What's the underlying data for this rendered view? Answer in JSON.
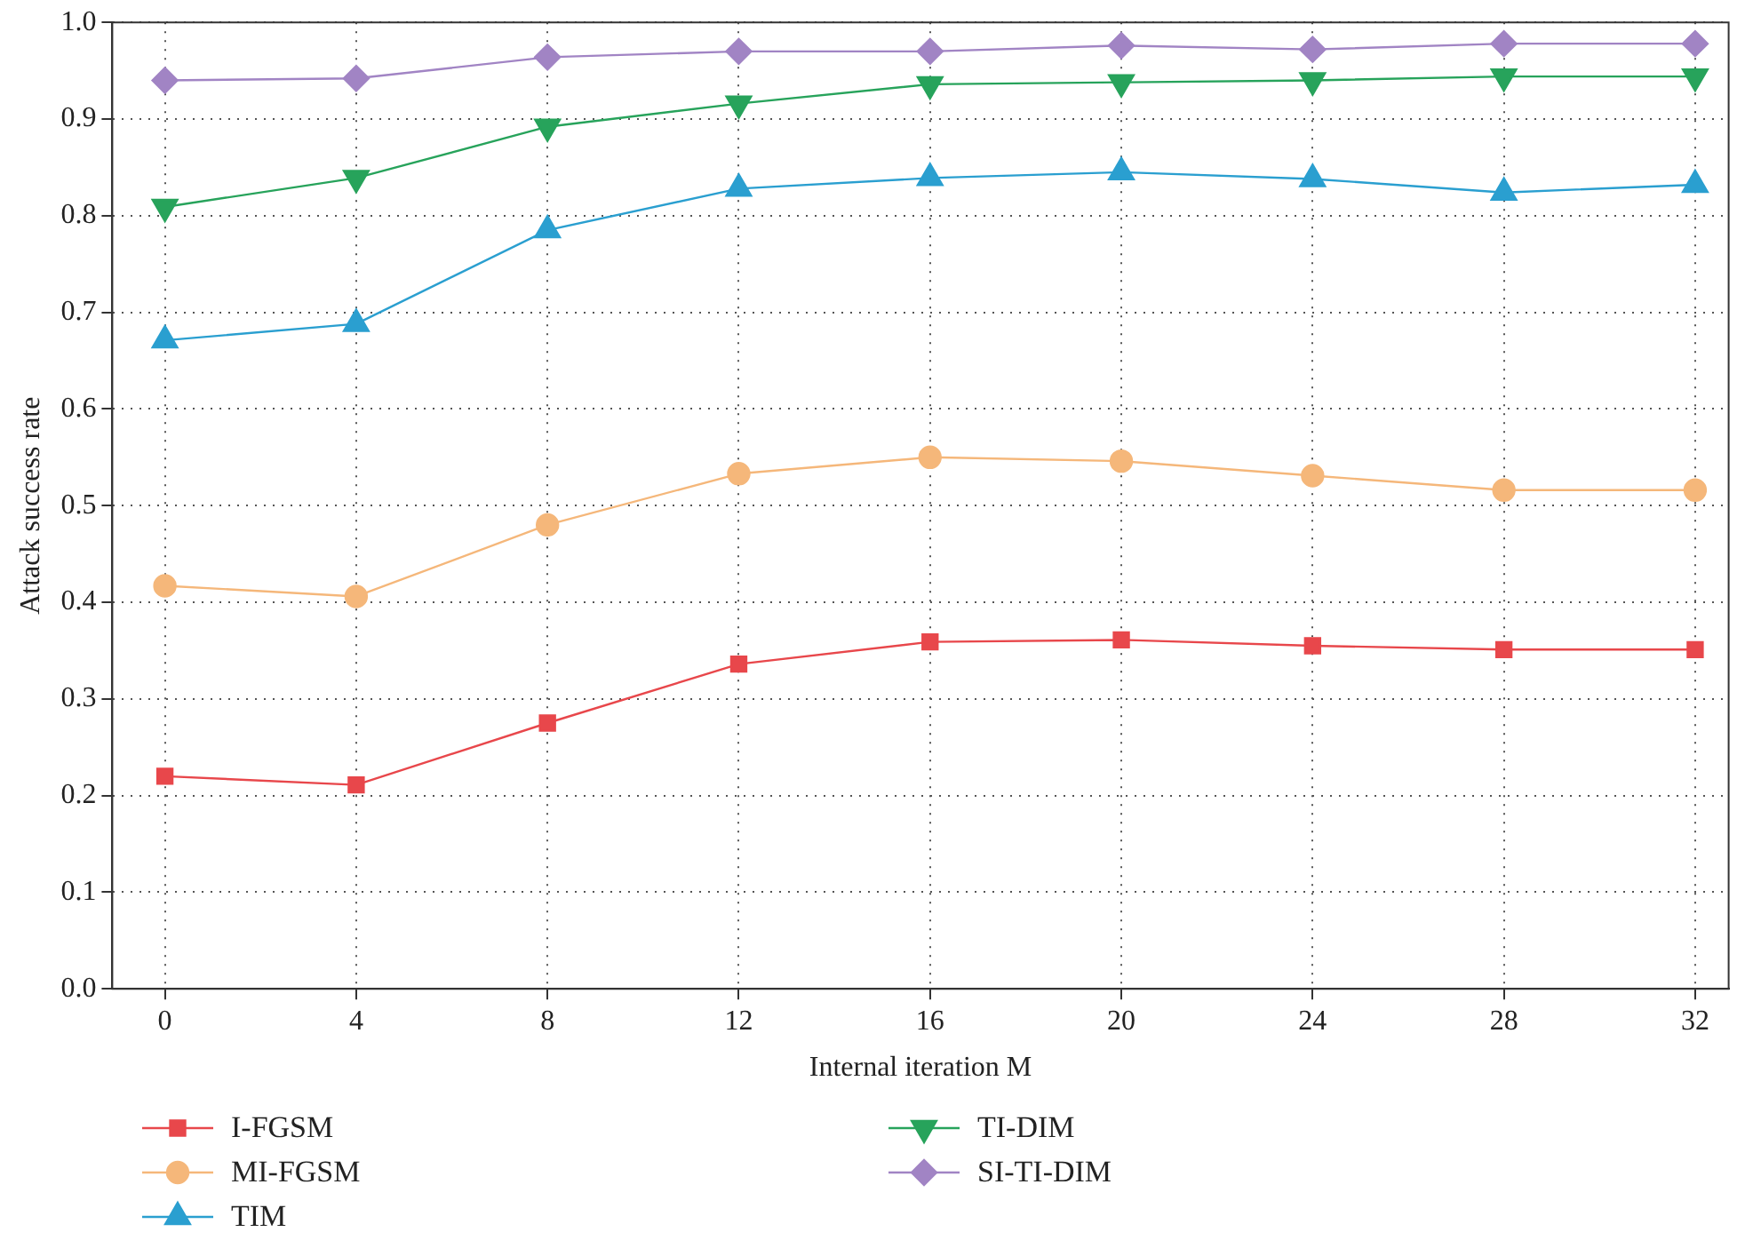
{
  "chart_data": {
    "type": "line",
    "xlabel": "Internal iteration M",
    "ylabel": "Attack success rate",
    "x": [
      0,
      4,
      8,
      12,
      16,
      20,
      24,
      28,
      32
    ],
    "xlim": [
      -1.1,
      32.7
    ],
    "xticks": [
      0,
      4,
      8,
      12,
      16,
      20,
      24,
      28,
      32
    ],
    "ylim": [
      0,
      1
    ],
    "yticks": [
      {
        "value": 0,
        "label": "0.0"
      },
      0.1,
      0.2,
      0.3,
      0.4,
      0.5,
      0.6,
      0.7,
      0.8,
      0.9,
      {
        "value": 1,
        "label": "1.0"
      }
    ],
    "grid": true,
    "legend": "bottom",
    "line_style": "solid",
    "series": [
      {
        "name": "I-FGSM",
        "color": "#e8474b",
        "marker": "square",
        "values": [
          0.22,
          0.211,
          0.275,
          0.336,
          0.359,
          0.361,
          0.355,
          0.351,
          0.351
        ]
      },
      {
        "name": "MI-FGSM",
        "color": "#f5b77a",
        "marker": "circle",
        "values": [
          0.417,
          0.406,
          0.48,
          0.533,
          0.55,
          0.546,
          0.531,
          0.516,
          0.516
        ]
      },
      {
        "name": "TIM",
        "color": "#2a9fd0",
        "marker": "triangle",
        "values": [
          0.671,
          0.688,
          0.785,
          0.828,
          0.839,
          0.845,
          0.838,
          0.824,
          0.832
        ]
      },
      {
        "name": "TI-DIM",
        "color": "#27a35b",
        "marker": "triangle-down",
        "values": [
          0.809,
          0.839,
          0.892,
          0.916,
          0.936,
          0.938,
          0.94,
          0.944,
          0.944
        ]
      },
      {
        "name": "SI-TI-DIM",
        "color": "#a184c4",
        "marker": "diamond",
        "values": [
          0.94,
          0.942,
          0.964,
          0.97,
          0.97,
          0.976,
          0.972,
          0.978,
          0.978
        ]
      }
    ]
  }
}
